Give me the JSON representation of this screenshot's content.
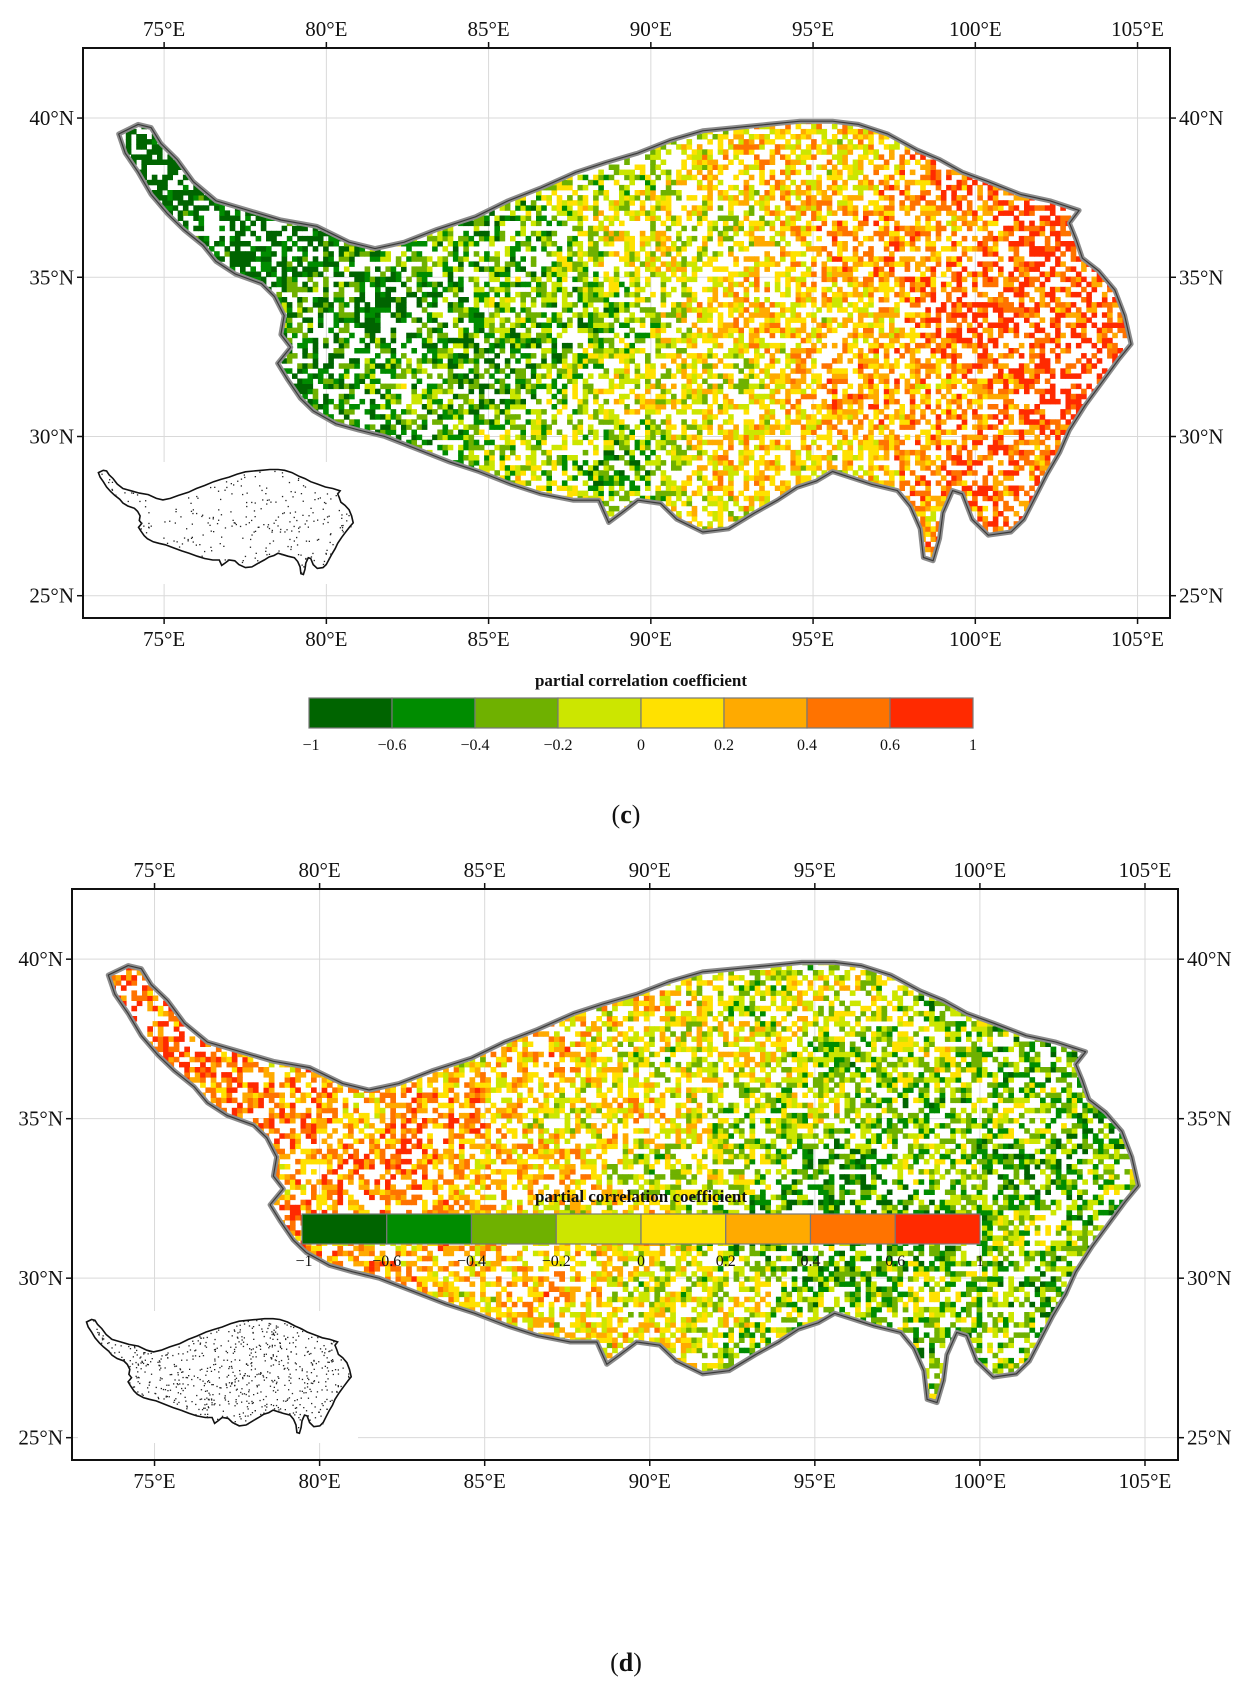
{
  "panels": [
    {
      "id": "c",
      "label": "c",
      "map_type": "raster",
      "colorscale_title": "partial correlation coefficient",
      "lon_ticks": [
        "75°E",
        "80°E",
        "85°E",
        "90°E",
        "95°E",
        "100°E",
        "105°E"
      ],
      "lat_ticks": [
        "40°N",
        "35°N",
        "30°N",
        "25°N"
      ],
      "colorbar_ticks": [
        "−1",
        "−0.6",
        "−0.4",
        "−0.2",
        "0",
        "0.2",
        "0.4",
        "0.6",
        "1"
      ]
    },
    {
      "id": "d",
      "label": "d",
      "map_type": "raster",
      "colorscale_title": "partial correlation coefficient",
      "lon_ticks": [
        "75°E",
        "80°E",
        "85°E",
        "90°E",
        "95°E",
        "100°E",
        "105°E"
      ],
      "lat_ticks": [
        "40°N",
        "35°N",
        "30°N",
        "25°N"
      ],
      "colorbar_ticks": [
        "−1",
        "−0.6",
        "−0.4",
        "−0.2",
        "0",
        "0.2",
        "0.4",
        "0.6",
        "1"
      ]
    }
  ],
  "chart_data": [
    {
      "type": "heatmap",
      "extent": {
        "lon": [
          72.5,
          106
        ],
        "lat": [
          24.3,
          42.2
        ]
      },
      "lon_tick_values": [
        75,
        80,
        85,
        90,
        95,
        100,
        105
      ],
      "lat_tick_values": [
        40,
        35,
        30,
        25
      ],
      "color_bins": [
        -1,
        -0.6,
        -0.4,
        -0.2,
        0,
        0.2,
        0.4,
        0.6,
        1
      ],
      "colors": [
        "#006400",
        "#008c00",
        "#6fb100",
        "#cce600",
        "#ffe100",
        "#ffaa00",
        "#ff7300",
        "#ff2a00"
      ],
      "region_outline_color": "#8c8c8c"
    },
    {
      "type": "heatmap",
      "extent": {
        "lon": [
          72.5,
          106
        ],
        "lat": [
          24.3,
          42.2
        ]
      },
      "lon_tick_values": [
        75,
        80,
        85,
        90,
        95,
        100,
        105
      ],
      "lat_tick_values": [
        40,
        35,
        30,
        25
      ],
      "color_bins": [
        -1,
        -0.6,
        -0.4,
        -0.2,
        0,
        0.2,
        0.4,
        0.6,
        1
      ],
      "colors": [
        "#006400",
        "#008c00",
        "#6fb100",
        "#cce600",
        "#ffe100",
        "#ffaa00",
        "#ff7300",
        "#ff2a00"
      ],
      "region_outline_color": "#8c8c8c"
    }
  ]
}
